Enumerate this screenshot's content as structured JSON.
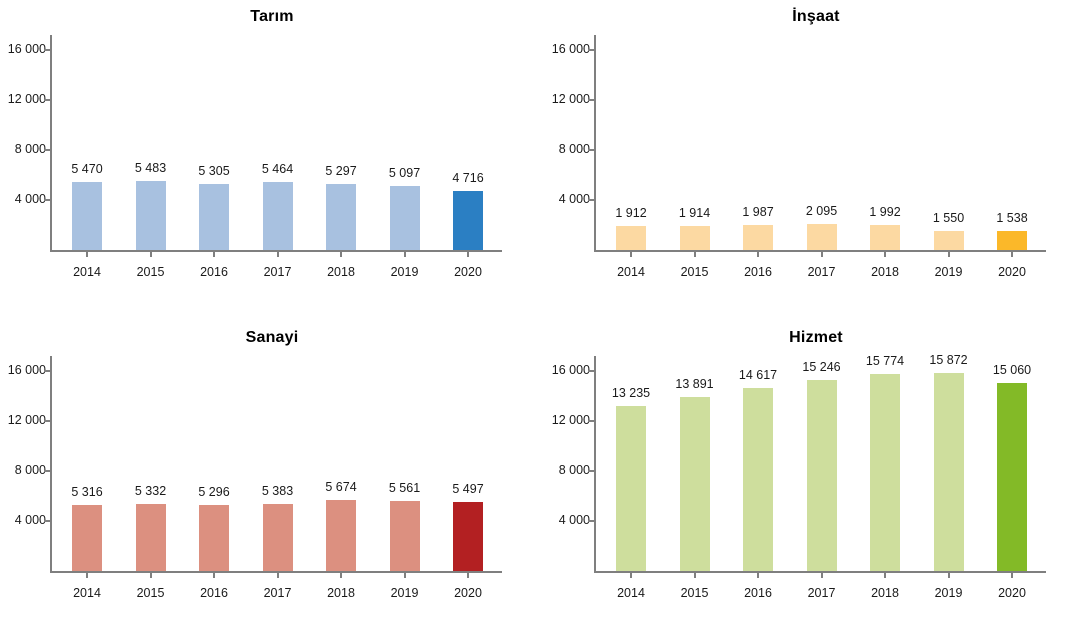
{
  "page": {
    "background": "#ffffff",
    "axis_color": "#7f7f7f",
    "label_color": "#1a1a1a"
  },
  "y_axis": {
    "ylim": [
      0,
      17200
    ],
    "ticks": [
      {
        "value": 4000,
        "label": "4 000"
      },
      {
        "value": 8000,
        "label": "8 000"
      },
      {
        "value": 12000,
        "label": "12 000"
      },
      {
        "value": 16000,
        "label": "16 000"
      }
    ]
  },
  "chart_data": [
    {
      "type": "bar",
      "title": "Tarım",
      "categories": [
        "2014",
        "2015",
        "2016",
        "2017",
        "2018",
        "2019",
        "2020"
      ],
      "values": [
        5470,
        5483,
        5305,
        5464,
        5297,
        5097,
        4716
      ],
      "value_labels": [
        "5 470",
        "5 483",
        "5 305",
        "5 464",
        "5 297",
        "5 097",
        "4 716"
      ],
      "bar_color": "#a8c1e0",
      "highlight_color": "#2b7fc3",
      "highlight_index": 6,
      "xlabel": "",
      "ylabel": "",
      "ylim": [
        0,
        17200
      ],
      "grid": false,
      "legend": null
    },
    {
      "type": "bar",
      "title": "İnşaat",
      "categories": [
        "2014",
        "2015",
        "2016",
        "2017",
        "2018",
        "2019",
        "2020"
      ],
      "values": [
        1912,
        1914,
        1987,
        2095,
        1992,
        1550,
        1538
      ],
      "value_labels": [
        "1 912",
        "1 914",
        "1 987",
        "2 095",
        "1 992",
        "1 550",
        "1 538"
      ],
      "bar_color": "#fcd9a2",
      "highlight_color": "#fbb829",
      "highlight_index": 6,
      "xlabel": "",
      "ylabel": "",
      "ylim": [
        0,
        17200
      ],
      "grid": false,
      "legend": null
    },
    {
      "type": "bar",
      "title": "Sanayi",
      "categories": [
        "2014",
        "2015",
        "2016",
        "2017",
        "2018",
        "2019",
        "2020"
      ],
      "values": [
        5316,
        5332,
        5296,
        5383,
        5674,
        5561,
        5497
      ],
      "value_labels": [
        "5 316",
        "5 332",
        "5 296",
        "5 383",
        "5 674",
        "5 561",
        "5 497"
      ],
      "bar_color": "#dc9080",
      "highlight_color": "#b32022",
      "highlight_index": 6,
      "xlabel": "",
      "ylabel": "",
      "ylim": [
        0,
        17200
      ],
      "grid": false,
      "legend": null
    },
    {
      "type": "bar",
      "title": "Hizmet",
      "categories": [
        "2014",
        "2015",
        "2016",
        "2017",
        "2018",
        "2019",
        "2020"
      ],
      "values": [
        13235,
        13891,
        14617,
        15246,
        15774,
        15872,
        15060
      ],
      "value_labels": [
        "13 235",
        "13 891",
        "14 617",
        "15 246",
        "15 774",
        "15 872",
        "15 060"
      ],
      "bar_color": "#cede9d",
      "highlight_color": "#83ba27",
      "highlight_index": 6,
      "xlabel": "",
      "ylabel": "",
      "ylim": [
        0,
        17200
      ],
      "grid": false,
      "legend": null
    }
  ]
}
